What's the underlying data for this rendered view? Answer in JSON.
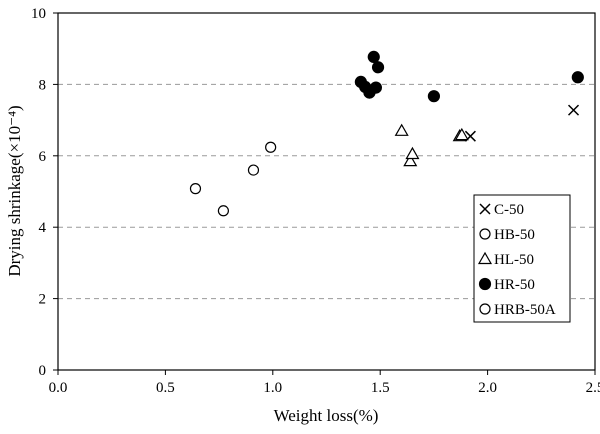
{
  "chart_data": {
    "type": "scatter",
    "title": "",
    "xlabel": "Weight loss(%)",
    "ylabel": "Drying shrinkage(×10⁻⁴)",
    "xlim": [
      0.0,
      2.5
    ],
    "ylim": [
      0,
      10
    ],
    "x_ticks": [
      "0.0",
      "0.5",
      "1.0",
      "1.5",
      "2.0",
      "2.5"
    ],
    "y_ticks": [
      "0",
      "2",
      "4",
      "6",
      "8",
      "10"
    ],
    "grid": "horizontal dashed at 2,4,6,8",
    "legend_position": "right-center",
    "series": [
      {
        "name": "C-50",
        "marker": "x",
        "fill": "none",
        "points": [
          [
            1.92,
            6.55
          ],
          [
            2.4,
            7.28
          ]
        ]
      },
      {
        "name": "HB-50",
        "marker": "circle",
        "fill": "open",
        "points": [
          [
            0.64,
            5.08
          ],
          [
            0.77,
            4.46
          ],
          [
            0.91,
            5.6
          ],
          [
            0.99,
            6.24
          ]
        ]
      },
      {
        "name": "HL-50",
        "marker": "triangle",
        "fill": "open",
        "points": [
          [
            1.6,
            6.7
          ],
          [
            1.64,
            5.85
          ],
          [
            1.65,
            6.05
          ],
          [
            1.87,
            6.55
          ],
          [
            1.88,
            6.58
          ]
        ]
      },
      {
        "name": "HR-50",
        "marker": "circle",
        "fill": "filled",
        "points": [
          [
            1.41,
            8.07
          ],
          [
            1.43,
            7.93
          ],
          [
            1.45,
            7.77
          ],
          [
            1.47,
            8.77
          ],
          [
            1.48,
            7.91
          ],
          [
            1.49,
            8.48
          ],
          [
            1.75,
            7.67
          ],
          [
            2.42,
            8.2
          ]
        ]
      },
      {
        "name": "HRB-50A",
        "marker": "circle",
        "fill": "open",
        "points": []
      }
    ]
  }
}
